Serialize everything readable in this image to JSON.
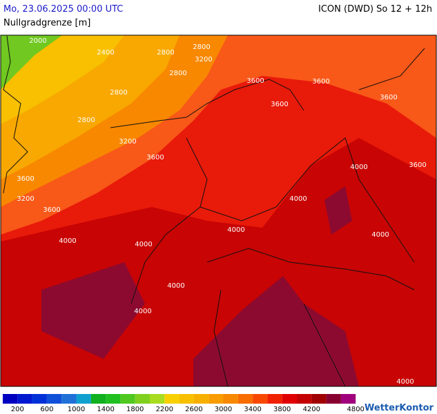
{
  "header": {
    "title": "Mo, 23.06.2025 00:00 UTC",
    "model": "ICON (DWD) So 12 + 12h",
    "parameter": "Nullgradgrenze [m]"
  },
  "map": {
    "contour_labels": [
      2000,
      2400,
      2800,
      2800,
      3200,
      2800,
      2800,
      2800,
      3200,
      3600,
      3600,
      3200,
      3600,
      4000,
      4000,
      4000,
      4000,
      4000,
      4000,
      4000,
      3600,
      3600,
      3600,
      3600,
      3600,
      4000,
      4000
    ]
  },
  "legend": {
    "ticks": [
      200,
      600,
      1000,
      1400,
      1800,
      2200,
      2600,
      3000,
      3400,
      3800,
      4200,
      4800
    ],
    "colors": [
      "#0000c0",
      "#0018d0",
      "#0030d8",
      "#1050d8",
      "#2070d8",
      "#10a0d0",
      "#10b020",
      "#20c020",
      "#50c820",
      "#80d020",
      "#a8dc20",
      "#f8d000",
      "#f8c000",
      "#f8b000",
      "#f89c00",
      "#f88800",
      "#f86c00",
      "#f84800",
      "#f02000",
      "#e00000",
      "#c40000",
      "#a00000",
      "#880030",
      "#a0007c"
    ]
  },
  "brand": "WetterKontor"
}
